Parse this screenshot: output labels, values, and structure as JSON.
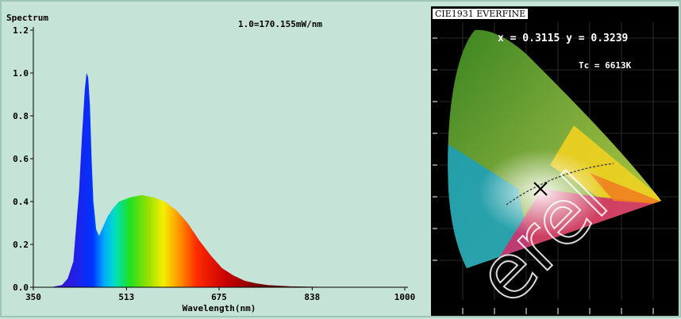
{
  "spectrum": {
    "title": "Spectrum",
    "scale_note": "1.0=170.155mW/nm",
    "xlabel": "Wavelength(nm)",
    "x_ticks": [
      "350",
      "513",
      "675",
      "838",
      "1000"
    ],
    "y_ticks": [
      "0.0",
      "0.2",
      "0.4",
      "0.6",
      "0.8",
      "1.0",
      "1.2"
    ]
  },
  "cie": {
    "title": "CIE1931 EVERFINE",
    "coords": "x = 0.3115 y = 0.3239",
    "cct": "Tc = 6613K",
    "watermark": "erel"
  },
  "chart_data": {
    "type": "area",
    "title": "Spectrum",
    "xlabel": "Wavelength(nm)",
    "ylabel": "",
    "xlim": [
      350,
      1000
    ],
    "ylim": [
      0,
      1.2
    ],
    "x": [
      350,
      380,
      400,
      410,
      420,
      430,
      435,
      440,
      443,
      446,
      449,
      452,
      455,
      460,
      465,
      470,
      475,
      480,
      490,
      500,
      520,
      540,
      560,
      580,
      600,
      620,
      640,
      660,
      680,
      700,
      720,
      740,
      760,
      800,
      850,
      900,
      1000
    ],
    "y": [
      0.0,
      0.0,
      0.01,
      0.04,
      0.12,
      0.45,
      0.7,
      0.92,
      1.0,
      0.98,
      0.85,
      0.6,
      0.4,
      0.27,
      0.24,
      0.27,
      0.3,
      0.33,
      0.37,
      0.4,
      0.42,
      0.43,
      0.42,
      0.4,
      0.36,
      0.3,
      0.22,
      0.15,
      0.09,
      0.055,
      0.03,
      0.018,
      0.01,
      0.004,
      0.002,
      0.001,
      0.0
    ]
  }
}
